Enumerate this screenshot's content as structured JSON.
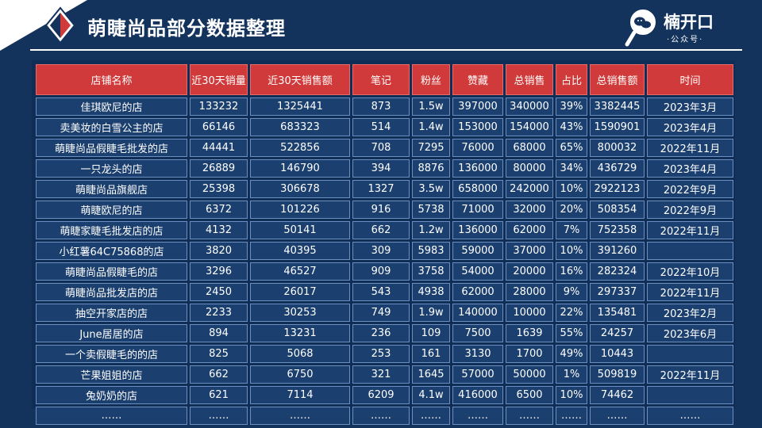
{
  "header": {
    "title": "萌睫尚品部分数据整理"
  },
  "logo": {
    "brand": "楠开口",
    "sub": "·公众号·"
  },
  "table": {
    "columns": [
      "店铺名称",
      "近30天销量",
      "近30天销售额",
      "笔记",
      "粉丝",
      "赞藏",
      "总销售",
      "占比",
      "总销售额",
      "时间"
    ],
    "rows": [
      [
        "佳琪欧尼的店",
        "133232",
        "1325441",
        "873",
        "1.5w",
        "397000",
        "340000",
        "39%",
        "3382445",
        "2023年3月"
      ],
      [
        "卖美妆的白雪公主的店",
        "66146",
        "683323",
        "514",
        "1.4w",
        "153000",
        "154000",
        "43%",
        "1590901",
        "2023年4月"
      ],
      [
        "萌睫尚品假睫毛批发的店",
        "44441",
        "522856",
        "708",
        "7295",
        "76000",
        "68000",
        "65%",
        "800032",
        "2022年11月"
      ],
      [
        "一只龙头的店",
        "26889",
        "146790",
        "394",
        "8876",
        "136000",
        "80000",
        "34%",
        "436729",
        "2023年4月"
      ],
      [
        "萌睫尚品旗舰店",
        "25398",
        "306678",
        "1327",
        "3.5w",
        "658000",
        "242000",
        "10%",
        "2922123",
        "2022年9月"
      ],
      [
        "萌睫欧尼的店",
        "6372",
        "101226",
        "916",
        "5738",
        "71000",
        "32000",
        "20%",
        "508354",
        "2022年9月"
      ],
      [
        "萌睫家睫毛批发店的店",
        "4132",
        "50141",
        "662",
        "1.2w",
        "136000",
        "62000",
        "7%",
        "752358",
        "2022年11月"
      ],
      [
        "小红薯64C75868的店",
        "3820",
        "40395",
        "309",
        "5983",
        "59000",
        "37000",
        "10%",
        "391260",
        ""
      ],
      [
        "萌睫尚品假睫毛的店",
        "3296",
        "46527",
        "909",
        "3758",
        "54000",
        "20000",
        "16%",
        "282324",
        "2022年10月"
      ],
      [
        "萌睫尚品批发店的店",
        "2450",
        "26017",
        "543",
        "4938",
        "62000",
        "28000",
        "9%",
        "297337",
        "2022年11月"
      ],
      [
        "抽空开家店的店",
        "2233",
        "30253",
        "749",
        "1.9w",
        "140000",
        "10000",
        "22%",
        "135481",
        "2023年2月"
      ],
      [
        "June居居的店",
        "894",
        "13231",
        "236",
        "109",
        "7500",
        "1639",
        "55%",
        "24257",
        "2023年6月"
      ],
      [
        "一个卖假睫毛的的店",
        "825",
        "5068",
        "253",
        "161",
        "3130",
        "1700",
        "49%",
        "10443",
        ""
      ],
      [
        "芒果姐姐的店",
        "662",
        "6750",
        "321",
        "1645",
        "57000",
        "50000",
        "1%",
        "509819",
        "2022年11月"
      ],
      [
        "兔奶奶的店",
        "621",
        "7114",
        "6209",
        "4.1w",
        "416000",
        "6500",
        "10%",
        "74462",
        ""
      ],
      [
        "……",
        "……",
        "……",
        "……",
        "……",
        "……",
        "……",
        "……",
        "……",
        "……"
      ]
    ]
  }
}
